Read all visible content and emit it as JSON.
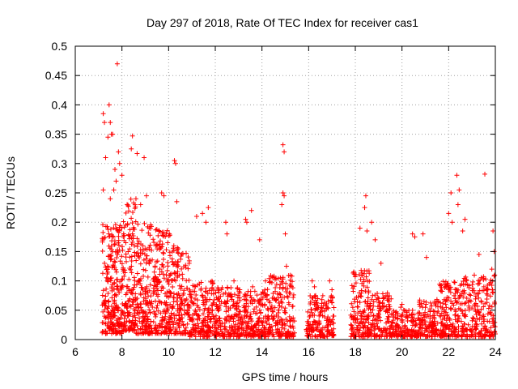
{
  "chart_data": {
    "type": "scatter",
    "title": "Day 297 of 2018, Rate Of TEC Index for receiver cas1",
    "xlabel": "GPS time / hours",
    "ylabel": "ROTI / TECUs",
    "xlim": [
      6,
      24
    ],
    "ylim": [
      0,
      0.5
    ],
    "xticks": [
      6,
      8,
      10,
      12,
      14,
      16,
      18,
      20,
      22,
      24
    ],
    "yticks": [
      0,
      0.05,
      0.1,
      0.15,
      0.2,
      0.25,
      0.3,
      0.35,
      0.4,
      0.45,
      0.5
    ],
    "xtick_labels": [
      "6",
      "8",
      "10",
      "12",
      "14",
      "16",
      "18",
      "20",
      "22",
      "24"
    ],
    "ytick_labels": [
      "0",
      "0.05",
      "0.1",
      "0.15",
      "0.2",
      "0.25",
      "0.3",
      "0.35",
      "0.4",
      "0.45",
      "0.5"
    ],
    "grid": true,
    "legend": "none",
    "marker": "plus",
    "series": [
      {
        "name": "cas1",
        "color": "#ff0000",
        "points": [
          [
            7.8,
            0.47
          ],
          [
            7.45,
            0.4
          ],
          [
            7.2,
            0.385
          ],
          [
            7.25,
            0.37
          ],
          [
            7.5,
            0.37
          ],
          [
            7.4,
            0.345
          ],
          [
            7.55,
            0.35
          ],
          [
            7.6,
            0.35
          ],
          [
            8.45,
            0.347
          ],
          [
            8.4,
            0.325
          ],
          [
            8.65,
            0.317
          ],
          [
            8.95,
            0.31
          ],
          [
            7.85,
            0.32
          ],
          [
            7.9,
            0.3
          ],
          [
            7.3,
            0.31
          ],
          [
            7.7,
            0.29
          ],
          [
            8.0,
            0.28
          ],
          [
            7.75,
            0.27
          ],
          [
            7.65,
            0.255
          ],
          [
            7.2,
            0.255
          ],
          [
            7.5,
            0.24
          ],
          [
            10.25,
            0.305
          ],
          [
            10.3,
            0.3
          ],
          [
            10.35,
            0.235
          ],
          [
            9.7,
            0.25
          ],
          [
            9.8,
            0.245
          ],
          [
            9.05,
            0.245
          ],
          [
            8.6,
            0.24
          ],
          [
            8.8,
            0.23
          ],
          [
            11.2,
            0.21
          ],
          [
            11.45,
            0.215
          ],
          [
            11.6,
            0.2
          ],
          [
            11.7,
            0.225
          ],
          [
            12.45,
            0.2
          ],
          [
            12.5,
            0.18
          ],
          [
            13.3,
            0.205
          ],
          [
            13.35,
            0.2
          ],
          [
            13.55,
            0.22
          ],
          [
            13.9,
            0.17
          ],
          [
            14.9,
            0.332
          ],
          [
            14.95,
            0.32
          ],
          [
            14.9,
            0.25
          ],
          [
            14.95,
            0.245
          ],
          [
            14.85,
            0.23
          ],
          [
            15.0,
            0.18
          ],
          [
            15.05,
            0.125
          ],
          [
            18.45,
            0.245
          ],
          [
            18.4,
            0.225
          ],
          [
            18.2,
            0.19
          ],
          [
            18.5,
            0.185
          ],
          [
            18.7,
            0.2
          ],
          [
            18.85,
            0.17
          ],
          [
            19.1,
            0.13
          ],
          [
            20.45,
            0.18
          ],
          [
            20.55,
            0.175
          ],
          [
            20.9,
            0.18
          ],
          [
            21.05,
            0.14
          ],
          [
            22.35,
            0.28
          ],
          [
            22.45,
            0.255
          ],
          [
            22.4,
            0.23
          ],
          [
            22.1,
            0.25
          ],
          [
            22.0,
            0.215
          ],
          [
            22.15,
            0.2
          ],
          [
            22.7,
            0.205
          ],
          [
            22.6,
            0.185
          ],
          [
            23.55,
            0.282
          ],
          [
            23.3,
            0.145
          ],
          [
            23.9,
            0.185
          ],
          [
            23.95,
            0.15
          ],
          [
            23.85,
            0.12
          ],
          [
            16.15,
            0.1
          ],
          [
            16.25,
            0.09
          ],
          [
            16.9,
            0.1
          ],
          [
            17.0,
            0.085
          ],
          [
            16.3,
            0.075
          ],
          [
            20.0,
            0.06
          ],
          [
            19.95,
            0.055
          ],
          [
            12.8,
            0.1
          ],
          [
            13.05,
            0.085
          ],
          [
            14.15,
            0.1
          ],
          [
            13.6,
            0.09
          ]
        ],
        "bands": [
          {
            "x": [
              7.15,
              8.0
            ],
            "y_min": 0.01,
            "y_peak": 0.2,
            "count": 240
          },
          {
            "x": [
              8.0,
              8.6
            ],
            "y_min": 0.015,
            "y_peak": 0.24,
            "count": 170
          },
          {
            "x": [
              8.6,
              9.3
            ],
            "y_min": 0.01,
            "y_peak": 0.2,
            "count": 170
          },
          {
            "x": [
              9.3,
              10.1
            ],
            "y_min": 0.01,
            "y_peak": 0.19,
            "count": 190
          },
          {
            "x": [
              10.1,
              10.9
            ],
            "y_min": 0.01,
            "y_peak": 0.16,
            "count": 160
          },
          {
            "x": [
              10.9,
              11.9
            ],
            "y_min": 0.005,
            "y_peak": 0.1,
            "count": 170
          },
          {
            "x": [
              11.9,
              13.0
            ],
            "y_min": 0.005,
            "y_peak": 0.09,
            "count": 180
          },
          {
            "x": [
              13.0,
              14.2
            ],
            "y_min": 0.005,
            "y_peak": 0.085,
            "count": 190
          },
          {
            "x": [
              14.2,
              15.4
            ],
            "y_min": 0.005,
            "y_peak": 0.11,
            "count": 200
          },
          {
            "x": [
              15.9,
              17.1
            ],
            "y_min": 0.005,
            "y_peak": 0.075,
            "count": 170
          },
          {
            "x": [
              17.8,
              18.6
            ],
            "y_min": 0.005,
            "y_peak": 0.12,
            "count": 150
          },
          {
            "x": [
              18.6,
              19.6
            ],
            "y_min": 0.005,
            "y_peak": 0.08,
            "count": 140
          },
          {
            "x": [
              19.6,
              20.6
            ],
            "y_min": 0.005,
            "y_peak": 0.05,
            "count": 130
          },
          {
            "x": [
              20.6,
              21.6
            ],
            "y_min": 0.005,
            "y_peak": 0.07,
            "count": 150
          },
          {
            "x": [
              21.6,
              22.6
            ],
            "y_min": 0.005,
            "y_peak": 0.1,
            "count": 170
          },
          {
            "x": [
              22.6,
              24.0
            ],
            "y_min": 0.005,
            "y_peak": 0.11,
            "count": 220
          }
        ]
      }
    ]
  }
}
